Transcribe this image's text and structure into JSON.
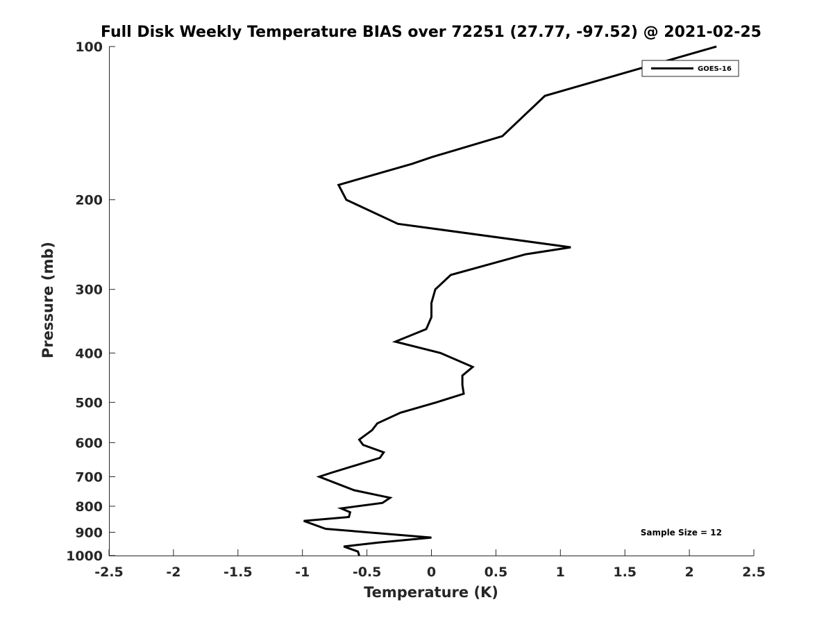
{
  "chart_data": {
    "type": "line",
    "title": "Full Disk Weekly Temperature BIAS over 72251 (27.77, -97.52) @ 2021-02-25",
    "xlabel": "Temperature (K)",
    "ylabel": "Pressure (mb)",
    "xlim": [
      -2.5,
      2.5
    ],
    "ylim": [
      1000,
      100
    ],
    "y_scale": "log",
    "y_reversed": true,
    "grid": false,
    "x_ticks": [
      -2.5,
      -2,
      -1.5,
      -1,
      -0.5,
      0,
      0.5,
      1,
      1.5,
      2,
      2.5
    ],
    "x_tick_labels": [
      "-2.5",
      "-2",
      "-1.5",
      "-1",
      "-0.5",
      "0",
      "0.5",
      "1",
      "1.5",
      "2",
      "2.5"
    ],
    "y_ticks": [
      100,
      200,
      300,
      400,
      500,
      600,
      700,
      800,
      900,
      1000
    ],
    "y_tick_labels": [
      "100",
      "200",
      "300",
      "400",
      "500",
      "600",
      "700",
      "800",
      "900",
      "1000"
    ],
    "legend_position": "top-right",
    "series": [
      {
        "name": "GOES-16",
        "color": "#000000",
        "points": [
          {
            "x": 2.21,
            "y": 100
          },
          {
            "x": 0.88,
            "y": 125
          },
          {
            "x": 0.55,
            "y": 150
          },
          {
            "x": 0.0,
            "y": 165
          },
          {
            "x": -0.15,
            "y": 170
          },
          {
            "x": -0.72,
            "y": 187
          },
          {
            "x": -0.66,
            "y": 200
          },
          {
            "x": -0.26,
            "y": 223
          },
          {
            "x": 1.08,
            "y": 248
          },
          {
            "x": 0.73,
            "y": 256
          },
          {
            "x": 0.15,
            "y": 281
          },
          {
            "x": 0.03,
            "y": 300
          },
          {
            "x": 0.0,
            "y": 319
          },
          {
            "x": 0.0,
            "y": 340
          },
          {
            "x": -0.04,
            "y": 359
          },
          {
            "x": -0.28,
            "y": 380
          },
          {
            "x": 0.07,
            "y": 400
          },
          {
            "x": 0.32,
            "y": 426
          },
          {
            "x": 0.24,
            "y": 443
          },
          {
            "x": 0.24,
            "y": 462
          },
          {
            "x": 0.25,
            "y": 481
          },
          {
            "x": 0.04,
            "y": 500
          },
          {
            "x": -0.24,
            "y": 524
          },
          {
            "x": -0.42,
            "y": 550
          },
          {
            "x": -0.46,
            "y": 567
          },
          {
            "x": -0.56,
            "y": 592
          },
          {
            "x": -0.53,
            "y": 606
          },
          {
            "x": -0.37,
            "y": 627
          },
          {
            "x": -0.4,
            "y": 643
          },
          {
            "x": -0.78,
            "y": 688
          },
          {
            "x": -0.87,
            "y": 700
          },
          {
            "x": -0.6,
            "y": 744
          },
          {
            "x": -0.32,
            "y": 770
          },
          {
            "x": -0.38,
            "y": 788
          },
          {
            "x": -0.7,
            "y": 808
          },
          {
            "x": -0.63,
            "y": 822
          },
          {
            "x": -0.64,
            "y": 840
          },
          {
            "x": -0.99,
            "y": 855
          },
          {
            "x": -0.82,
            "y": 886
          },
          {
            "x": 0.0,
            "y": 922
          },
          {
            "x": -0.41,
            "y": 943
          },
          {
            "x": -0.68,
            "y": 960
          },
          {
            "x": -0.57,
            "y": 982
          },
          {
            "x": -0.56,
            "y": 1000
          }
        ]
      }
    ],
    "annotations": [
      {
        "text": "Sample Size = 12",
        "position": "bottom-right"
      }
    ]
  }
}
